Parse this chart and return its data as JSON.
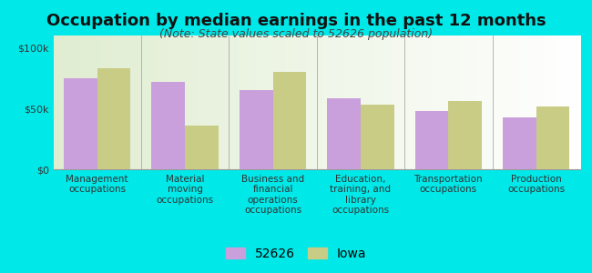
{
  "title": "Occupation by median earnings in the past 12 months",
  "subtitle": "(Note: State values scaled to 52626 population)",
  "categories": [
    "Management\noccupations",
    "Material\nmoving\noccupations",
    "Business and\nfinancial\noperations\noccupations",
    "Education,\ntraining, and\nlibrary\noccupations",
    "Transportation\noccupations",
    "Production\noccupations"
  ],
  "values_52626": [
    75000,
    72000,
    65000,
    58000,
    48000,
    43000
  ],
  "values_iowa": [
    83000,
    36000,
    80000,
    53000,
    56000,
    52000
  ],
  "color_52626": "#c9a0dc",
  "color_iowa": "#c8cc84",
  "background_outer": "#00e8e8",
  "ylim": [
    0,
    110000
  ],
  "yticks": [
    0,
    50000,
    100000
  ],
  "ytick_labels": [
    "$0",
    "$50k",
    "$100k"
  ],
  "legend_label_52626": "52626",
  "legend_label_iowa": "Iowa",
  "bar_width": 0.38,
  "title_fontsize": 13,
  "subtitle_fontsize": 9,
  "tick_label_fontsize": 7.5,
  "ytick_fontsize": 8,
  "legend_fontsize": 10
}
